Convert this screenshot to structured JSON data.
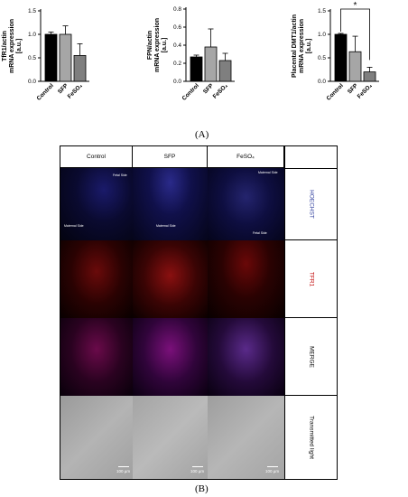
{
  "chart_data": [
    {
      "type": "bar",
      "categories": [
        "Control",
        "SFP",
        "FeSO4"
      ],
      "category_labels": [
        "Control",
        "SFP",
        "FeSO₄"
      ],
      "values": [
        1.0,
        1.0,
        0.55
      ],
      "errors": [
        0.05,
        0.18,
        0.25
      ],
      "ylabel_lines": [
        "TfR1/actin",
        "mRNA expression",
        "[a.u.]"
      ],
      "ylim": [
        0,
        1.5
      ],
      "yticks": [
        "0.0",
        "0.5",
        "1.0",
        "1.5"
      ],
      "significance": null
    },
    {
      "type": "bar",
      "categories": [
        "Control",
        "SFP",
        "FeSO4"
      ],
      "category_labels": [
        "Control",
        "SFP",
        "FeSO₄"
      ],
      "values": [
        0.27,
        0.38,
        0.23
      ],
      "errors": [
        0.02,
        0.2,
        0.08
      ],
      "ylabel_lines": [
        "FPN/actin",
        "mRNA expression",
        "[a.u.]"
      ],
      "ylim": [
        0,
        0.8
      ],
      "yticks": [
        "0.0",
        "0.2",
        "0.4",
        "0.6",
        "0.8"
      ],
      "significance": null
    },
    {
      "type": "bar",
      "categories": [
        "Control",
        "SFP",
        "FeSO4"
      ],
      "category_labels": [
        "Control",
        "SFP",
        "FeSO₄"
      ],
      "values": [
        1.0,
        0.63,
        0.2
      ],
      "errors": [
        0.02,
        0.33,
        0.1
      ],
      "ylabel_lines": [
        "Placental DMT1/actin",
        "mRNA expression",
        "[a.u.]"
      ],
      "ylim": [
        0,
        1.5
      ],
      "yticks": [
        "0.0",
        "0.5",
        "1.0",
        "1.5"
      ],
      "significance": "*"
    }
  ],
  "colors": {
    "control": "#000000",
    "sfp": "#a6a6a6",
    "feso4": "#7f7f7f",
    "hoechst_label": "#2a3a9a",
    "tfr1_label": "#c00000"
  },
  "panels": {
    "a": "(A)",
    "b": "(B)"
  },
  "grid": {
    "columns": [
      "Control",
      "SFP",
      "FeSO₄"
    ],
    "rows": [
      "HOECHST",
      "TFR1",
      "MERGE",
      "Transmitted light"
    ],
    "annotations": {
      "control_fetal": "Fetal Side",
      "control_maternal": "Maternal Side",
      "sfp_maternal": "Maternal Side",
      "feso4_maternal": "Maternal Side",
      "feso4_fetal": "Fetal Side"
    },
    "scale_label": "100 µm"
  }
}
